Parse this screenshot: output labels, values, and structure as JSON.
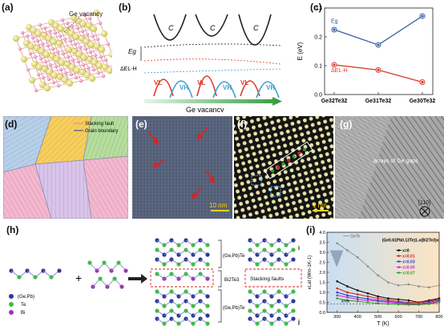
{
  "panels": {
    "a": {
      "label": "(a)",
      "annotation": "Ge vacancy"
    },
    "b": {
      "label": "(b)",
      "band_c": "C",
      "eg": "Eg",
      "delta_e": "ΔEL-H",
      "vl": "VL",
      "vh": "VH",
      "arrow_label": "Ge vacancy"
    },
    "c": {
      "label": "(c)",
      "ylabel": "E (eV)",
      "series_eg": "Eg",
      "series_de": "ΔEL-H"
    },
    "d": {
      "label": "(d)",
      "legend_stacking": "Stacking fault",
      "legend_grain": "Grain boundary"
    },
    "e": {
      "label": "(e)",
      "scale": "10 nm"
    },
    "f": {
      "label": "(f)",
      "scale": "1 nm"
    },
    "g": {
      "label": "(g)",
      "annotation": "arrays of Ge gaps",
      "direction": "[110]"
    },
    "h": {
      "label": "(h)",
      "legend_gepb": "(Ge,Pb)",
      "legend_te": "Te",
      "legend_bi": "Bi",
      "layer_top": "(Ge,Pb)Te",
      "layer_mid": "Bi2Te3",
      "layer_bot": "(Ge,Pb)Te",
      "stacking_faults": "Stacking faults",
      "tag_i": "i",
      "tag_j": "j",
      "plus": "+"
    },
    "i": {
      "label": "(i)",
      "ylabel": "κLat (Wm-1K-1)",
      "xlabel": "T (K)",
      "formula": "(Ge0.61Pb0.13Te)1-x(Bi2Te3)x",
      "kmin": "κmin",
      "gete": "GeTe"
    }
  },
  "chart_data": [
    {
      "type": "line",
      "title": "",
      "categories": [
        "Ge32Te32",
        "Ge31Te32",
        "Ge30Te32"
      ],
      "series": [
        {
          "name": "Eg",
          "values": [
            0.225,
            0.172,
            0.272
          ],
          "color": "#3a5ba8"
        },
        {
          "name": "ΔEL-H",
          "values": [
            0.103,
            0.085,
            0.043
          ],
          "color": "#d93a2b"
        }
      ],
      "xlabel": "",
      "ylabel": "E (eV)",
      "ylim": [
        0.0,
        0.3
      ],
      "yticks": [
        "0.0",
        "0.1",
        "0.2",
        "0.3"
      ],
      "legend": "left"
    },
    {
      "type": "line",
      "title": "",
      "x": [
        300,
        350,
        400,
        450,
        500,
        550,
        600,
        650,
        700,
        750,
        800
      ],
      "series": [
        {
          "name": "GeTe",
          "values": [
            3.45,
            3.1,
            2.75,
            2.3,
            1.85,
            1.5,
            1.35,
            1.4,
            1.3,
            1.25,
            1.35
          ],
          "color": "#888888"
        },
        {
          "name": "x=0",
          "values": [
            1.55,
            1.3,
            1.1,
            0.95,
            0.8,
            0.7,
            0.65,
            0.6,
            0.5,
            0.6,
            0.7
          ],
          "color": "#000000"
        },
        {
          "name": "x=0.01",
          "values": [
            1.2,
            1.0,
            0.9,
            0.8,
            0.7,
            0.62,
            0.55,
            0.5,
            0.48,
            0.55,
            0.65
          ],
          "color": "#d62020"
        },
        {
          "name": "x=0.03",
          "values": [
            1.0,
            0.85,
            0.75,
            0.68,
            0.6,
            0.55,
            0.5,
            0.45,
            0.42,
            0.5,
            0.6
          ],
          "color": "#2a3cd0"
        },
        {
          "name": "x=0.05",
          "values": [
            0.85,
            0.75,
            0.65,
            0.6,
            0.55,
            0.5,
            0.45,
            0.42,
            0.4,
            0.45,
            0.55
          ],
          "color": "#d020d0"
        },
        {
          "name": "x=0.07",
          "values": [
            0.7,
            0.6,
            0.55,
            0.5,
            0.45,
            0.42,
            0.4,
            0.38,
            0.38,
            0.42,
            0.5
          ],
          "color": "#2aa02a"
        }
      ],
      "xlabel": "T (K)",
      "ylabel": "κLat (Wm-1K-1)",
      "xlim": [
        250,
        800
      ],
      "ylim": [
        0.0,
        4.0
      ],
      "xticks": [
        "300",
        "400",
        "500",
        "600",
        "700",
        "800"
      ],
      "yticks": [
        "0.0",
        "0.5",
        "1.0",
        "1.5",
        "2.0",
        "2.5",
        "3.0",
        "3.5",
        "4.0"
      ],
      "legend": "top-right"
    }
  ]
}
